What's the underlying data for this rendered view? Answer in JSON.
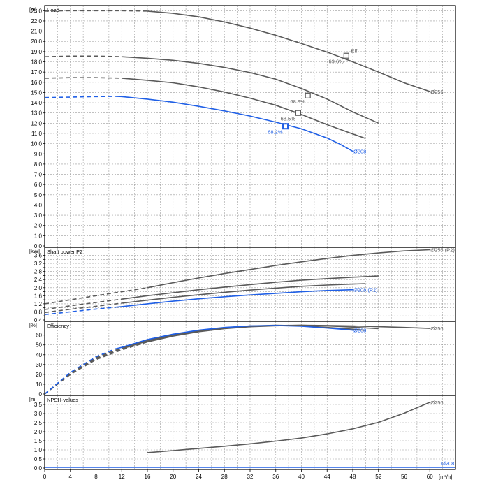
{
  "colors": {
    "grey": "#5a5a5a",
    "blue": "#1f5fe6",
    "grid": "#9a9a9a",
    "frame": "#000000"
  },
  "x_axis": {
    "unit_label": "[m³/h]",
    "ticks": [
      "0",
      "4",
      "8",
      "12",
      "16",
      "20",
      "24",
      "28",
      "32",
      "36",
      "40",
      "44",
      "48",
      "52",
      "56",
      "60"
    ],
    "min": 0,
    "max": 64
  },
  "chart_data": [
    {
      "type": "line",
      "title": "Head",
      "unit_label": "[m]",
      "xlim": [
        0,
        64
      ],
      "ylim": [
        0,
        23.5
      ],
      "yticks": [
        0,
        1,
        2,
        3,
        4,
        5,
        6,
        7,
        8,
        9,
        10,
        11,
        12,
        13,
        14,
        15,
        16,
        17,
        18,
        19,
        20,
        21,
        22,
        23
      ],
      "ytick_labels": [
        "0.0",
        "1.0",
        "2.0",
        "3.0",
        "4.0",
        "5.0",
        "6.0",
        "7.0",
        "8.0",
        "9.0",
        "10.0",
        "11.0",
        "12.0",
        "13.0",
        "14.0",
        "15.0",
        "16.0",
        "17.0",
        "18.0",
        "19.0",
        "20.0",
        "21.0",
        "22.0",
        "23.0"
      ],
      "series": [
        {
          "name": "Ø256",
          "color": "grey",
          "dashed_until": 16,
          "points": [
            [
              0,
              22.96
            ],
            [
              4,
              23.0
            ],
            [
              8,
              23.0
            ],
            [
              12,
              23.0
            ],
            [
              16,
              22.96
            ],
            [
              20,
              22.74
            ],
            [
              24,
              22.4
            ],
            [
              28,
              21.9
            ],
            [
              32,
              21.3
            ],
            [
              36,
              20.6
            ],
            [
              40,
              19.8
            ],
            [
              44,
              18.95
            ],
            [
              48,
              18.0
            ],
            [
              52,
              17.0
            ],
            [
              56,
              15.95
            ],
            [
              60,
              15.1
            ]
          ]
        },
        {
          "name": "",
          "color": "grey",
          "dashed_until": 12,
          "points": [
            [
              0,
              18.5
            ],
            [
              4,
              18.56
            ],
            [
              8,
              18.56
            ],
            [
              12,
              18.5
            ],
            [
              16,
              18.35
            ],
            [
              20,
              18.15
            ],
            [
              24,
              17.85
            ],
            [
              28,
              17.45
            ],
            [
              32,
              16.95
            ],
            [
              36,
              16.3
            ],
            [
              40,
              15.4
            ],
            [
              44,
              14.35
            ],
            [
              48,
              13.1
            ],
            [
              52,
              12.0
            ]
          ]
        },
        {
          "name": "",
          "color": "grey",
          "dashed_until": 12,
          "points": [
            [
              0,
              16.4
            ],
            [
              4,
              16.45
            ],
            [
              8,
              16.45
            ],
            [
              12,
              16.4
            ],
            [
              16,
              16.2
            ],
            [
              20,
              15.95
            ],
            [
              24,
              15.55
            ],
            [
              28,
              15.05
            ],
            [
              32,
              14.45
            ],
            [
              36,
              13.75
            ],
            [
              40,
              12.85
            ],
            [
              44,
              11.85
            ],
            [
              48,
              10.95
            ],
            [
              50,
              10.5
            ]
          ]
        },
        {
          "name": "Ø208",
          "color": "blue",
          "dashed_until": 11,
          "points": [
            [
              0,
              14.5
            ],
            [
              4,
              14.55
            ],
            [
              8,
              14.6
            ],
            [
              11,
              14.62
            ],
            [
              12,
              14.6
            ],
            [
              16,
              14.35
            ],
            [
              20,
              14.05
            ],
            [
              24,
              13.65
            ],
            [
              28,
              13.2
            ],
            [
              32,
              12.7
            ],
            [
              36,
              12.1
            ],
            [
              40,
              11.45
            ],
            [
              44,
              10.55
            ],
            [
              46,
              9.95
            ],
            [
              48,
              9.25
            ]
          ]
        }
      ],
      "markers": [
        {
          "x": 47,
          "y": 18.6,
          "color": "grey",
          "label": "69.6%"
        },
        {
          "x": 41,
          "y": 14.7,
          "color": "grey",
          "label": "68.9%"
        },
        {
          "x": 39.5,
          "y": 13.0,
          "color": "grey",
          "label": "68.5%"
        },
        {
          "x": 37.5,
          "y": 11.7,
          "color": "blue",
          "label": "68.2%"
        }
      ],
      "annotations": [
        {
          "text": "Eff.",
          "x": 47.6,
          "y": 19.1,
          "color": "grey"
        },
        {
          "text": "Ø256",
          "x": 60,
          "y": 15.1,
          "color": "grey"
        },
        {
          "text": "Ø208",
          "x": 48,
          "y": 9.25,
          "color": "blue"
        }
      ]
    },
    {
      "type": "line",
      "title": "Shaft power P2",
      "unit_label": "[kW]",
      "xlim": [
        0,
        64
      ],
      "ylim": [
        0.4,
        4.0
      ],
      "yticks": [
        0.4,
        0.6,
        0.8,
        1.0,
        1.2,
        1.4,
        1.6,
        1.8,
        2.0,
        2.2,
        2.4,
        2.6,
        2.8,
        3.0,
        3.2,
        3.4,
        3.6
      ],
      "ytick_labels": [
        "0.4",
        "",
        "0.8",
        "",
        "1.2",
        "",
        "1.6",
        "",
        "2.0",
        "",
        "2.4",
        "",
        "2.8",
        "",
        "3.2",
        "",
        "3.6"
      ],
      "series": [
        {
          "name": "Ø256 (P2)",
          "color": "grey",
          "dashed_until": 16,
          "points": [
            [
              0,
              1.2
            ],
            [
              4,
              1.4
            ],
            [
              8,
              1.6
            ],
            [
              12,
              1.8
            ],
            [
              16,
              2.0
            ],
            [
              20,
              2.25
            ],
            [
              24,
              2.48
            ],
            [
              28,
              2.7
            ],
            [
              32,
              2.9
            ],
            [
              36,
              3.1
            ],
            [
              40,
              3.28
            ],
            [
              44,
              3.45
            ],
            [
              48,
              3.6
            ],
            [
              52,
              3.72
            ],
            [
              56,
              3.82
            ],
            [
              60,
              3.88
            ]
          ]
        },
        {
          "name": "",
          "color": "grey",
          "dashed_until": 12,
          "points": [
            [
              0,
              0.92
            ],
            [
              4,
              1.1
            ],
            [
              8,
              1.27
            ],
            [
              12,
              1.43
            ],
            [
              16,
              1.6
            ],
            [
              20,
              1.75
            ],
            [
              24,
              1.9
            ],
            [
              28,
              2.03
            ],
            [
              32,
              2.15
            ],
            [
              36,
              2.27
            ],
            [
              40,
              2.37
            ],
            [
              44,
              2.45
            ],
            [
              48,
              2.52
            ],
            [
              52,
              2.58
            ]
          ]
        },
        {
          "name": "",
          "color": "grey",
          "dashed_until": 12,
          "points": [
            [
              0,
              0.77
            ],
            [
              4,
              0.93
            ],
            [
              8,
              1.08
            ],
            [
              12,
              1.23
            ],
            [
              16,
              1.38
            ],
            [
              20,
              1.52
            ],
            [
              24,
              1.65
            ],
            [
              28,
              1.77
            ],
            [
              32,
              1.88
            ],
            [
              36,
              1.98
            ],
            [
              40,
              2.07
            ],
            [
              44,
              2.13
            ],
            [
              48,
              2.18
            ],
            [
              50,
              2.2
            ]
          ]
        },
        {
          "name": "Ø208 (P2)",
          "color": "blue",
          "dashed_until": 11,
          "points": [
            [
              0,
              0.67
            ],
            [
              4,
              0.8
            ],
            [
              8,
              0.94
            ],
            [
              11,
              1.03
            ],
            [
              12,
              1.06
            ],
            [
              16,
              1.2
            ],
            [
              20,
              1.33
            ],
            [
              24,
              1.45
            ],
            [
              28,
              1.55
            ],
            [
              32,
              1.64
            ],
            [
              36,
              1.72
            ],
            [
              40,
              1.8
            ],
            [
              44,
              1.86
            ],
            [
              48,
              1.9
            ]
          ]
        }
      ],
      "markers": [],
      "annotations": [
        {
          "text": "Ø256 (P2)",
          "x": 60,
          "y": 3.88,
          "color": "grey"
        },
        {
          "text": "Ø208 (P2)",
          "x": 48,
          "y": 1.9,
          "color": "blue"
        }
      ]
    },
    {
      "type": "line",
      "title": "Efficiency",
      "unit_label": "[%]",
      "xlim": [
        0,
        64
      ],
      "ylim": [
        0,
        74
      ],
      "yticks": [
        0,
        10,
        20,
        30,
        40,
        50,
        60
      ],
      "ytick_labels": [
        "0",
        "10",
        "20",
        "30",
        "40",
        "50",
        "60"
      ],
      "series": [
        {
          "name": "Ø256",
          "color": "grey",
          "dashed_until": 16,
          "points": [
            [
              0,
              0
            ],
            [
              4,
              20
            ],
            [
              8,
              35
            ],
            [
              12,
              45
            ],
            [
              16,
              53
            ],
            [
              20,
              59
            ],
            [
              24,
              63.5
            ],
            [
              28,
              66.5
            ],
            [
              32,
              68.5
            ],
            [
              36,
              69.5
            ],
            [
              40,
              70
            ],
            [
              44,
              69.8
            ],
            [
              48,
              69.3
            ],
            [
              52,
              68.6
            ],
            [
              56,
              67.8
            ],
            [
              60,
              66.8
            ]
          ]
        },
        {
          "name": "",
          "color": "grey",
          "dashed_until": 12,
          "points": [
            [
              0,
              0
            ],
            [
              4,
              21
            ],
            [
              8,
              36
            ],
            [
              12,
              46
            ],
            [
              16,
              54
            ],
            [
              20,
              60
            ],
            [
              24,
              64
            ],
            [
              28,
              67
            ],
            [
              32,
              69
            ],
            [
              36,
              69.8
            ],
            [
              40,
              70
            ],
            [
              44,
              69.3
            ],
            [
              48,
              68.2
            ],
            [
              52,
              66.5
            ]
          ]
        },
        {
          "name": "",
          "color": "grey",
          "dashed_until": 12,
          "points": [
            [
              0,
              0
            ],
            [
              4,
              21.5
            ],
            [
              8,
              37
            ],
            [
              12,
              47
            ],
            [
              16,
              55
            ],
            [
              20,
              60.5
            ],
            [
              24,
              64.5
            ],
            [
              28,
              67.5
            ],
            [
              32,
              69.3
            ],
            [
              36,
              70
            ],
            [
              40,
              69.5
            ],
            [
              44,
              67.8
            ],
            [
              48,
              66
            ],
            [
              50,
              64.8
            ]
          ]
        },
        {
          "name": "Ø208",
          "color": "blue",
          "dashed_until": 11,
          "points": [
            [
              0,
              0
            ],
            [
              4,
              22
            ],
            [
              8,
              38
            ],
            [
              11,
              46
            ],
            [
              12,
              47.5
            ],
            [
              16,
              55.5
            ],
            [
              20,
              61
            ],
            [
              24,
              65
            ],
            [
              28,
              67.8
            ],
            [
              32,
              69.3
            ],
            [
              36,
              69.8
            ],
            [
              40,
              69
            ],
            [
              44,
              67.2
            ],
            [
              48,
              65
            ]
          ]
        }
      ],
      "markers": [],
      "annotations": [
        {
          "text": "Ø256",
          "x": 60,
          "y": 66.8,
          "color": "grey"
        },
        {
          "text": "Ø208",
          "x": 48,
          "y": 65,
          "color": "blue"
        }
      ]
    },
    {
      "type": "line",
      "title": "NPSH-values",
      "unit_label": "[m]",
      "xlim": [
        0,
        64
      ],
      "ylim": [
        0,
        4.0
      ],
      "yticks": [
        0,
        0.5,
        1.0,
        1.5,
        2.0,
        2.5,
        3.0,
        3.5
      ],
      "ytick_labels": [
        "0.0",
        "0.5",
        "1.0",
        "1.5",
        "2.0",
        "2.5",
        "3.0",
        "3.5"
      ],
      "series": [
        {
          "name": "Ø256",
          "color": "grey",
          "dashed_until": null,
          "points": [
            [
              16,
              0.85
            ],
            [
              20,
              0.96
            ],
            [
              24,
              1.08
            ],
            [
              28,
              1.2
            ],
            [
              32,
              1.33
            ],
            [
              36,
              1.48
            ],
            [
              40,
              1.65
            ],
            [
              44,
              1.88
            ],
            [
              48,
              2.16
            ],
            [
              52,
              2.52
            ],
            [
              56,
              3.02
            ],
            [
              60,
              3.62
            ]
          ]
        },
        {
          "name": "Ø208",
          "color": "blue",
          "dashed_until": null,
          "points": [
            [
              0,
              0.04
            ],
            [
              64,
              0.04
            ]
          ]
        }
      ],
      "markers": [],
      "annotations": [
        {
          "text": "Ø256",
          "x": 60,
          "y": 3.62,
          "color": "grey"
        },
        {
          "text": "Ø208",
          "x": 64,
          "y": 0.04,
          "color": "blue"
        }
      ]
    }
  ]
}
